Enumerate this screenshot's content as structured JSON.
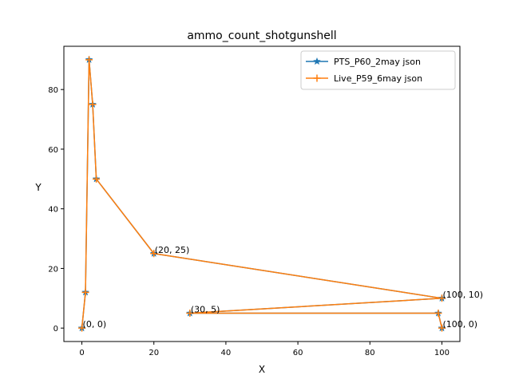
{
  "chart_data": {
    "type": "line",
    "title": "ammo_count_shotgunshell",
    "xlabel": "X",
    "ylabel": "Y",
    "xlim": [
      -5,
      105
    ],
    "ylim": [
      -4.5,
      94.5
    ],
    "xticks": [
      0,
      20,
      40,
      60,
      80,
      100
    ],
    "yticks": [
      0,
      20,
      40,
      60,
      80
    ],
    "grid": false,
    "legend_position": "top-right",
    "series": [
      {
        "name": "PTS_P60_2may json",
        "color": "#1f77b4",
        "marker": "star",
        "x": [
          0,
          1,
          2,
          3,
          4,
          20,
          100,
          30,
          99,
          100
        ],
        "y": [
          0,
          12,
          90,
          75,
          50,
          25,
          10,
          5,
          5,
          0
        ]
      },
      {
        "name": "Live_P59_6may json",
        "color": "#ff7f0e",
        "marker": "plus",
        "x": [
          0,
          1,
          2,
          3,
          4,
          20,
          100,
          30,
          99,
          100
        ],
        "y": [
          0,
          12,
          90,
          75,
          50,
          25,
          10,
          5,
          5,
          0
        ]
      }
    ],
    "annotations": [
      {
        "text": "(0, 0)",
        "x": 0,
        "y": 0
      },
      {
        "text": "(20, 25)",
        "x": 20,
        "y": 25
      },
      {
        "text": "(30, 5)",
        "x": 30,
        "y": 5
      },
      {
        "text": "(100, 10)",
        "x": 100,
        "y": 10
      },
      {
        "text": "(100, 0)",
        "x": 100,
        "y": 0
      }
    ]
  }
}
